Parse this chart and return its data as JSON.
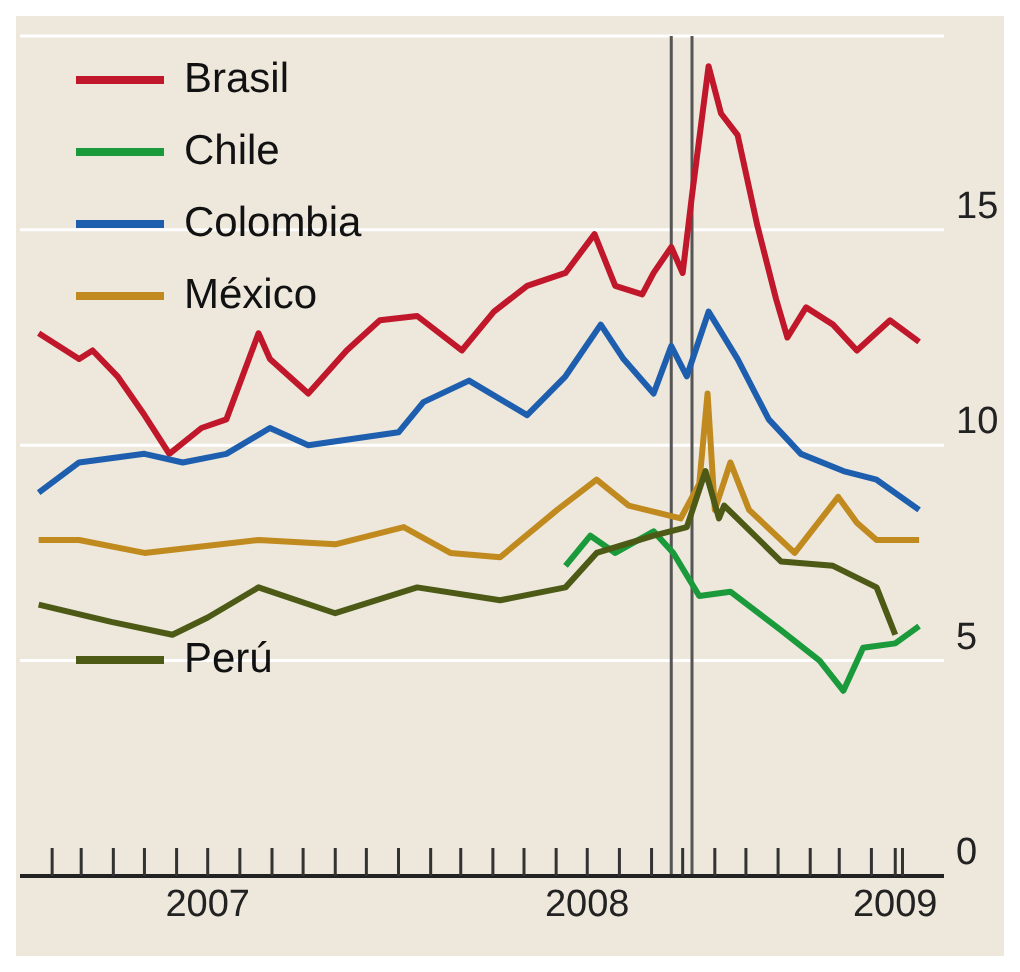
{
  "chart_data": {
    "type": "line",
    "legend": "top left",
    "grid": "y",
    "xlim": [
      "2007-01-01",
      "2009-06-10"
    ],
    "ylim": [
      0,
      19.5
    ],
    "yticks": [
      0,
      5,
      10,
      15
    ],
    "xticks": [
      {
        "value": "2007-02-01",
        "label": null
      },
      {
        "value": "2007-03-01",
        "label": null
      },
      {
        "value": "2007-04-01",
        "label": null
      },
      {
        "value": "2007-05-01",
        "label": null
      },
      {
        "value": "2007-06-01",
        "label": null
      },
      {
        "value": "2007-07-01",
        "label": "2007"
      },
      {
        "value": "2007-08-01",
        "label": null
      },
      {
        "value": "2007-09-01",
        "label": null
      },
      {
        "value": "2007-10-01",
        "label": null
      },
      {
        "value": "2007-11-01",
        "label": null
      },
      {
        "value": "2007-12-01",
        "label": null
      },
      {
        "value": "2008-01-01",
        "label": null
      },
      {
        "value": "2008-02-01",
        "label": null
      },
      {
        "value": "2008-03-01",
        "label": null
      },
      {
        "value": "2008-04-01",
        "label": null
      },
      {
        "value": "2008-05-01",
        "label": null
      },
      {
        "value": "2008-06-01",
        "label": null
      },
      {
        "value": "2008-07-01",
        "label": "2008"
      },
      {
        "value": "2008-08-01",
        "label": null
      },
      {
        "value": "2008-09-01",
        "label": null
      },
      {
        "value": "2008-10-01",
        "label": null
      },
      {
        "value": "2008-11-01",
        "label": null
      },
      {
        "value": "2008-12-01",
        "label": null
      },
      {
        "value": "2009-01-01",
        "label": null
      },
      {
        "value": "2009-02-01",
        "label": null
      },
      {
        "value": "2009-03-01",
        "label": null
      },
      {
        "value": "2009-04-01",
        "label": null
      },
      {
        "value": "2009-04-24",
        "label": "2009"
      },
      {
        "value": "2009-05-01",
        "label": null
      }
    ],
    "ref_lines": [
      {
        "axis": "x",
        "value": "2008-09-20",
        "color": "#555555"
      },
      {
        "axis": "x",
        "value": "2008-10-10",
        "color": "#555555"
      }
    ],
    "series": [
      {
        "name": "Brasil",
        "color": "#c0172b",
        "x": [
          "2007-01-19",
          "2007-02-27",
          "2007-03-12",
          "2007-04-05",
          "2007-05-01",
          "2007-05-25",
          "2007-06-25",
          "2007-07-19",
          "2007-08-19",
          "2007-08-30",
          "2007-10-06",
          "2007-11-12",
          "2007-12-14",
          "2008-01-19",
          "2008-03-02",
          "2008-04-02",
          "2008-05-04",
          "2008-06-10",
          "2008-07-08",
          "2008-07-28",
          "2008-08-23",
          "2008-09-03",
          "2008-09-20",
          "2008-10-01",
          "2008-10-10",
          "2008-10-26",
          "2008-11-07",
          "2008-11-23",
          "2008-12-12",
          "2008-12-30",
          "2009-01-10",
          "2009-01-28",
          "2009-02-23",
          "2009-03-18",
          "2009-04-19",
          "2009-05-17"
        ],
        "values": [
          12.6,
          12.0,
          12.2,
          11.6,
          10.7,
          9.8,
          10.4,
          10.6,
          12.6,
          12.0,
          11.2,
          12.2,
          12.9,
          13.0,
          12.2,
          13.1,
          13.7,
          14.0,
          14.9,
          13.7,
          13.5,
          14.0,
          14.6,
          14.0,
          15.8,
          18.8,
          17.7,
          17.2,
          15.1,
          13.4,
          12.5,
          13.2,
          12.8,
          12.2,
          12.9,
          12.4
        ]
      },
      {
        "name": "Chile",
        "color": "#1a9a3a",
        "x": [
          "2008-06-10",
          "2008-07-04",
          "2008-07-28",
          "2008-09-03",
          "2008-09-22",
          "2008-10-17",
          "2008-11-16",
          "2009-01-04",
          "2009-02-10",
          "2009-03-05",
          "2009-03-24",
          "2009-04-24",
          "2009-05-17"
        ],
        "values": [
          7.2,
          7.9,
          7.5,
          8.0,
          7.5,
          6.5,
          6.6,
          5.7,
          5.0,
          4.3,
          5.3,
          5.4,
          5.8
        ]
      },
      {
        "name": "Colombia",
        "color": "#1d5fae",
        "x": [
          "2007-01-19",
          "2007-02-27",
          "2007-05-01",
          "2007-06-07",
          "2007-07-19",
          "2007-08-30",
          "2007-10-06",
          "2008-01-01",
          "2008-01-25",
          "2008-03-09",
          "2008-05-04",
          "2008-06-10",
          "2008-07-14",
          "2008-08-05",
          "2008-09-03",
          "2008-09-20",
          "2008-10-05",
          "2008-10-26",
          "2008-11-23",
          "2008-12-23",
          "2009-01-23",
          "2009-03-05",
          "2009-04-06",
          "2009-05-17"
        ],
        "values": [
          8.9,
          9.6,
          9.8,
          9.6,
          9.8,
          10.4,
          10.0,
          10.3,
          11.0,
          11.5,
          10.7,
          11.6,
          12.8,
          12.0,
          11.2,
          12.3,
          11.6,
          13.1,
          12.0,
          10.6,
          9.8,
          9.4,
          9.2,
          8.5
        ]
      },
      {
        "name": "México",
        "color": "#c08a1f",
        "x": [
          "2007-01-19",
          "2007-02-27",
          "2007-05-01",
          "2007-08-19",
          "2007-11-01",
          "2008-01-06",
          "2008-02-20",
          "2008-04-08",
          "2008-06-02",
          "2008-07-10",
          "2008-08-10",
          "2008-09-29",
          "2008-10-17",
          "2008-10-25",
          "2008-11-01",
          "2008-11-16",
          "2008-12-04",
          "2009-01-17",
          "2009-02-28",
          "2009-03-18",
          "2009-04-06",
          "2009-05-17"
        ],
        "values": [
          7.8,
          7.8,
          7.5,
          7.8,
          7.7,
          8.1,
          7.5,
          7.4,
          8.5,
          9.2,
          8.6,
          8.3,
          9.1,
          11.2,
          8.5,
          9.6,
          8.5,
          7.5,
          8.8,
          8.2,
          7.8,
          7.8
        ]
      },
      {
        "name": "Perú",
        "color": "#4d5a16",
        "x": [
          "2007-01-19",
          "2007-03-30",
          "2007-05-28",
          "2007-07-01",
          "2007-08-19",
          "2007-11-01",
          "2008-01-19",
          "2008-04-08",
          "2008-06-10",
          "2008-07-10",
          "2008-09-03",
          "2008-10-05",
          "2008-10-23",
          "2008-11-05",
          "2008-11-10",
          "2009-01-04",
          "2009-02-23",
          "2009-04-06",
          "2009-04-24"
        ],
        "values": [
          6.3,
          5.9,
          5.6,
          6.0,
          6.7,
          6.1,
          6.7,
          6.4,
          6.7,
          7.5,
          7.9,
          8.1,
          9.4,
          8.3,
          8.6,
          7.3,
          7.2,
          6.7,
          5.6
        ]
      }
    ]
  }
}
